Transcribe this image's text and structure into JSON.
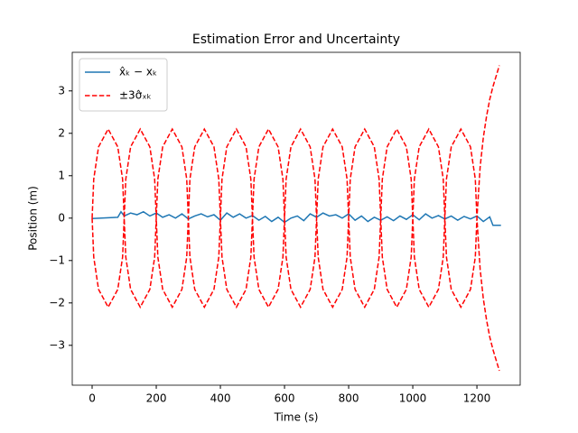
{
  "chart_data": {
    "type": "line",
    "title": "Estimation Error and Uncertainty",
    "xlabel": "Time (s)",
    "ylabel": "Position (m)",
    "xlim": [
      -62,
      1335
    ],
    "ylim": [
      -3.94,
      3.91
    ],
    "xticks": [
      0,
      200,
      400,
      600,
      800,
      1000,
      1200
    ],
    "yticks": [
      {
        "value": -3,
        "label": "−3"
      },
      {
        "value": -2,
        "label": "−2"
      },
      {
        "value": -1,
        "label": "−1"
      },
      0,
      1,
      2,
      3
    ],
    "grid": false,
    "legend": "upper left",
    "series": [
      {
        "name": "x̂ₖ − xₖ",
        "color": "#1f77b4",
        "dash": false,
        "x": [
          0,
          80,
          90,
          100,
          120,
          140,
          160,
          180,
          200,
          220,
          240,
          260,
          280,
          300,
          320,
          340,
          360,
          380,
          400,
          420,
          440,
          460,
          480,
          500,
          520,
          540,
          560,
          580,
          600,
          620,
          640,
          660,
          680,
          700,
          720,
          740,
          760,
          780,
          800,
          820,
          840,
          860,
          880,
          900,
          920,
          940,
          960,
          980,
          1000,
          1020,
          1040,
          1060,
          1080,
          1100,
          1120,
          1140,
          1160,
          1180,
          1200,
          1220,
          1240,
          1250,
          1275
        ],
        "values": [
          -0.01,
          0.02,
          0.15,
          0.05,
          0.12,
          0.08,
          0.15,
          0.05,
          0.12,
          0.02,
          0.08,
          0.0,
          0.1,
          -0.02,
          0.05,
          0.1,
          0.03,
          0.08,
          -0.05,
          0.12,
          0.02,
          0.1,
          0.0,
          0.06,
          -0.05,
          0.04,
          -0.08,
          0.02,
          -0.1,
          0.0,
          0.05,
          -0.06,
          0.1,
          0.02,
          0.12,
          0.05,
          0.08,
          0.0,
          0.1,
          -0.05,
          0.05,
          -0.08,
          0.02,
          -0.05,
          0.03,
          -0.06,
          0.05,
          -0.03,
          0.08,
          -0.04,
          0.1,
          0.0,
          0.06,
          -0.02,
          0.05,
          -0.05,
          0.04,
          -0.02,
          0.05,
          -0.08,
          0.03,
          -0.17,
          -0.17
        ]
      },
      {
        "name": "±3σ̂ₓₖ",
        "color": "#ff0000",
        "dash": true,
        "x": [
          0,
          5,
          20,
          50,
          80,
          95,
          100,
          105,
          120,
          150,
          180,
          195,
          200,
          205,
          220,
          250,
          280,
          295,
          300,
          305,
          320,
          350,
          380,
          395,
          400,
          405,
          420,
          450,
          480,
          495,
          500,
          505,
          520,
          550,
          580,
          595,
          600,
          605,
          620,
          650,
          680,
          695,
          700,
          705,
          720,
          750,
          780,
          795,
          800,
          805,
          820,
          850,
          880,
          895,
          900,
          905,
          920,
          950,
          980,
          995,
          1000,
          1005,
          1020,
          1050,
          1080,
          1095,
          1100,
          1105,
          1120,
          1150,
          1180,
          1195,
          1200,
          1210,
          1220,
          1230,
          1240,
          1250,
          1260,
          1270
        ],
        "values": [
          0,
          0.92,
          1.68,
          2.1,
          1.68,
          0.92,
          0,
          0.92,
          1.68,
          2.1,
          1.68,
          0.92,
          0,
          0.92,
          1.68,
          2.1,
          1.68,
          0.92,
          0,
          0.92,
          1.68,
          2.1,
          1.68,
          0.92,
          0,
          0.92,
          1.68,
          2.1,
          1.68,
          0.92,
          0,
          0.92,
          1.68,
          2.1,
          1.68,
          0.92,
          0,
          0.92,
          1.68,
          2.1,
          1.68,
          0.92,
          0,
          0.92,
          1.68,
          2.1,
          1.68,
          0.92,
          0,
          0.92,
          1.68,
          2.1,
          1.68,
          0.92,
          0,
          0.92,
          1.68,
          2.1,
          1.68,
          0.92,
          0,
          0.92,
          1.68,
          2.1,
          1.68,
          0.92,
          0,
          0.92,
          1.68,
          2.1,
          1.68,
          0.92,
          0,
          1.2,
          1.9,
          2.4,
          2.8,
          3.1,
          3.35,
          3.6
        ]
      },
      {
        "color": "#ff0000",
        "dash": true,
        "x": [
          0,
          5,
          20,
          50,
          80,
          95,
          100,
          105,
          120,
          150,
          180,
          195,
          200,
          205,
          220,
          250,
          280,
          295,
          300,
          305,
          320,
          350,
          380,
          395,
          400,
          405,
          420,
          450,
          480,
          495,
          500,
          505,
          520,
          550,
          580,
          595,
          600,
          605,
          620,
          650,
          680,
          695,
          700,
          705,
          720,
          750,
          780,
          795,
          800,
          805,
          820,
          850,
          880,
          895,
          900,
          905,
          920,
          950,
          980,
          995,
          1000,
          1005,
          1020,
          1050,
          1080,
          1095,
          1100,
          1105,
          1120,
          1150,
          1180,
          1195,
          1200,
          1210,
          1220,
          1230,
          1240,
          1250,
          1260,
          1270
        ],
        "values": [
          0,
          -0.92,
          -1.68,
          -2.1,
          -1.68,
          -0.92,
          0,
          -0.92,
          -1.68,
          -2.1,
          -1.68,
          -0.92,
          0,
          -0.92,
          -1.68,
          -2.1,
          -1.68,
          -0.92,
          0,
          -0.92,
          -1.68,
          -2.1,
          -1.68,
          -0.92,
          0,
          -0.92,
          -1.68,
          -2.1,
          -1.68,
          -0.92,
          0,
          -0.92,
          -1.68,
          -2.1,
          -1.68,
          -0.92,
          0,
          -0.92,
          -1.68,
          -2.1,
          -1.68,
          -0.92,
          0,
          -0.92,
          -1.68,
          -2.1,
          -1.68,
          -0.92,
          0,
          -0.92,
          -1.68,
          -2.1,
          -1.68,
          -0.92,
          0,
          -0.92,
          -1.68,
          -2.1,
          -1.68,
          -0.92,
          0,
          -0.92,
          -1.68,
          -2.1,
          -1.68,
          -0.92,
          0,
          -0.92,
          -1.68,
          -2.1,
          -1.68,
          -0.92,
          0,
          -1.2,
          -1.9,
          -2.4,
          -2.8,
          -3.1,
          -3.35,
          -3.6
        ]
      }
    ]
  }
}
